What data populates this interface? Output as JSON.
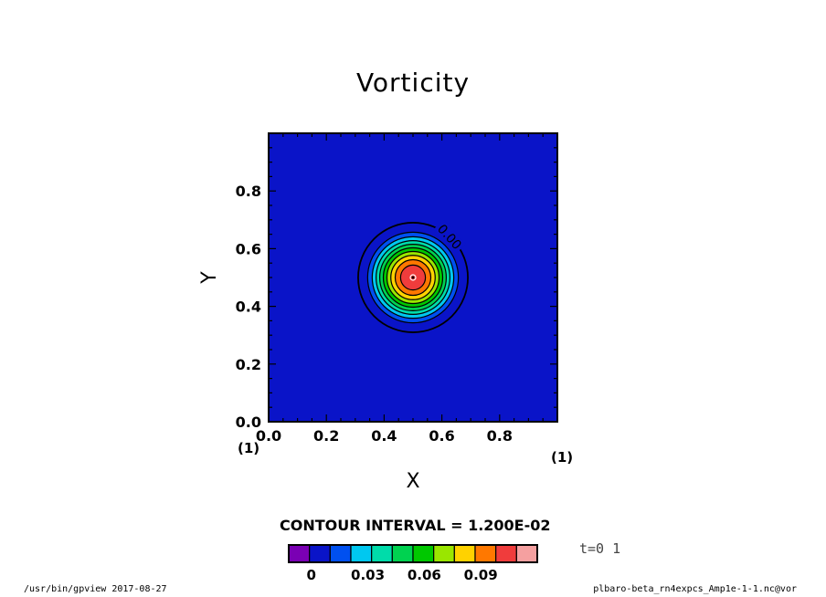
{
  "window": {
    "title": ""
  },
  "chart_data": {
    "type": "heatmap",
    "title": "Vorticity",
    "xlabel": "X",
    "ylabel": "Y",
    "xlim": [
      0.0,
      1.0
    ],
    "ylim": [
      0.0,
      1.0
    ],
    "x_ticks": [
      "0.0",
      "0.2",
      "0.4",
      "0.6",
      "0.8"
    ],
    "y_ticks": [
      "0.0",
      "0.2",
      "0.4",
      "0.6",
      "0.8"
    ],
    "x_tick_values": [
      0.0,
      0.2,
      0.4,
      0.6,
      0.8
    ],
    "y_tick_values": [
      0.0,
      0.2,
      0.4,
      0.6,
      0.8
    ],
    "axis_note_x": "(1)",
    "axis_note_y": "(1)",
    "contour_label": "0.00",
    "contour_interval_text": "CONTOUR INTERVAL = 1.200E-02",
    "contour_interval": 0.012,
    "vortex_center": [
      0.5,
      0.5
    ],
    "vortex_radius": 0.19,
    "vortex_peak": 0.12,
    "background_value": 0.0,
    "colorbar": {
      "levels": [
        -0.012,
        0.0,
        0.012,
        0.024,
        0.036,
        0.048,
        0.06,
        0.072,
        0.084,
        0.096,
        0.108,
        0.12
      ],
      "colors": [
        "#7a00b4",
        "#0a14c8",
        "#0050f0",
        "#00c8f0",
        "#00dcaa",
        "#00d250",
        "#00c800",
        "#9ae600",
        "#ffd200",
        "#ff7800",
        "#f03c3c",
        "#f5a0a0"
      ],
      "tick_labels": [
        "0",
        "0.03",
        "0.06",
        "0.09"
      ],
      "tick_values": [
        0.0,
        0.03,
        0.06,
        0.09
      ]
    },
    "grid": false
  },
  "footer": {
    "left": "/usr/bin/gpview  2017-08-27",
    "right": "plbaro-beta_rn4expcs_Amp1e-1-1.nc@vor",
    "time_label": "t=0 1"
  }
}
